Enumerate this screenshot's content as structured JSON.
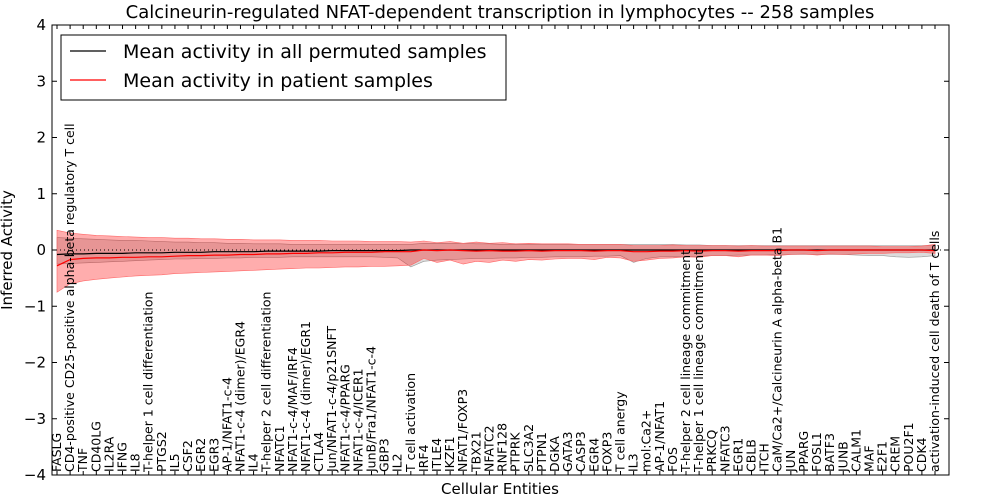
{
  "chart_data": {
    "type": "line",
    "title": "Calcineurin-regulated NFAT-dependent transcription in lymphocytes -- 258 samples",
    "xlabel": "Cellular Entities",
    "ylabel": "Inferred Activity",
    "ylim": [
      -4,
      4
    ],
    "yticks": [
      -4,
      -3,
      -2,
      -1,
      0,
      1,
      2,
      3,
      4
    ],
    "ytick_labels": [
      "−4",
      "−3",
      "−2",
      "−1",
      "0",
      "1",
      "2",
      "3",
      "4"
    ],
    "legend": {
      "position": "top-left",
      "entries": [
        {
          "label": "Mean activity in all permuted samples",
          "color": "#000000"
        },
        {
          "label": "Mean activity in patient samples",
          "color": "#ff0000"
        }
      ]
    },
    "categories": [
      "FASLG",
      "CD4-positive CD25-positive alpha-beta regulatory T cell",
      "TNF",
      "CD40LG",
      "IL2RA",
      "IFNG",
      "IL8",
      "T-helper 1 cell differentiation",
      "PTGS2",
      "IL5",
      "CSF2",
      "EGR2",
      "EGR3",
      "AP-1/NFAT1-c-4",
      "NFAT1-c-4 (dimer)/EGR4",
      "IL4",
      "T-helper 2 cell differentiation",
      "NFATC1",
      "NFAT1-c-4/MAF/IRF4",
      "NFAT1-c-4 (dimer)/EGR1",
      "CTLA4",
      "Jun/NFAT1-c-4/p21SNFT",
      "NFAT1-c-4/PPARG",
      "NFAT1-c-4/ICER1",
      "JunB/Fra1/NFAT1-c-4",
      "GBP3",
      "IL2",
      "T cell activation",
      "IRF4",
      "ITLE4",
      "IKZF1",
      "NFAT1/FOXP3",
      "TBX21",
      "NFATC2",
      "RNF128",
      "PTPRK",
      "SLC3A2",
      "PTPN1",
      "DGKA",
      "GATA3",
      "CASP3",
      "EGR4",
      "FOXP3",
      "T cell anergy",
      "IL3",
      "mol:Ca2+",
      "AP-1/NFAT1",
      "FOS",
      "T-helper 2 cell lineage commitment",
      "T-helper 1 cell lineage commitment",
      "PRKCQ",
      "NFATC3",
      "EGR1",
      "CBLB",
      "ITCH",
      "CaM/Ca2+/Calcineurin A alpha-beta B1",
      "JUN",
      "PPARG",
      "FOSL1",
      "BATF3",
      "JUNB",
      "CALM1",
      "MAF",
      "E2F1",
      "CREM",
      "POU2F1",
      "CDK4",
      "activation-induced cell death of T cells"
    ],
    "series": [
      {
        "name": "Mean activity in all permuted samples",
        "color": "#000000",
        "values": [
          -0.08,
          -0.07,
          -0.07,
          -0.06,
          -0.06,
          -0.06,
          -0.05,
          -0.05,
          -0.05,
          -0.04,
          -0.04,
          -0.04,
          -0.03,
          -0.03,
          -0.03,
          -0.03,
          -0.02,
          -0.02,
          -0.02,
          -0.02,
          -0.02,
          -0.01,
          -0.01,
          -0.01,
          -0.01,
          -0.01,
          -0.01,
          0.0,
          0.0,
          0.0,
          0.0,
          0.0,
          0.0,
          0.0,
          0.0,
          0.0,
          0.0,
          0.0,
          0.0,
          0.0,
          0.0,
          0.0,
          0.0,
          0.0,
          0.0,
          0.0,
          0.0,
          0.0,
          0.0,
          0.0,
          0.0,
          0.0,
          0.0,
          0.0,
          0.0,
          0.0,
          0.0,
          0.0,
          0.0,
          0.0,
          0.0,
          0.0,
          0.0,
          0.0,
          0.0,
          0.0,
          0.0,
          0.0
        ],
        "band_low": [
          -0.25,
          -0.24,
          -0.23,
          -0.22,
          -0.21,
          -0.2,
          -0.19,
          -0.18,
          -0.17,
          -0.16,
          -0.16,
          -0.15,
          -0.15,
          -0.14,
          -0.14,
          -0.13,
          -0.13,
          -0.13,
          -0.12,
          -0.12,
          -0.12,
          -0.12,
          -0.12,
          -0.12,
          -0.12,
          -0.13,
          -0.14,
          -0.3,
          -0.2,
          -0.18,
          -0.17,
          -0.16,
          -0.15,
          -0.15,
          -0.14,
          -0.14,
          -0.13,
          -0.13,
          -0.12,
          -0.12,
          -0.12,
          -0.11,
          -0.11,
          -0.1,
          -0.22,
          -0.15,
          -0.12,
          -0.12,
          -0.12,
          -0.11,
          -0.1,
          -0.1,
          -0.09,
          -0.09,
          -0.09,
          -0.08,
          -0.08,
          -0.08,
          -0.08,
          -0.08,
          -0.08,
          -0.09,
          -0.1,
          -0.1,
          -0.12,
          -0.13,
          -0.12,
          -0.1
        ],
        "band_high": [
          0.22,
          0.21,
          0.2,
          0.19,
          0.18,
          0.17,
          0.17,
          0.16,
          0.15,
          0.14,
          0.14,
          0.13,
          0.13,
          0.12,
          0.12,
          0.11,
          0.11,
          0.11,
          0.1,
          0.1,
          0.1,
          0.1,
          0.1,
          0.1,
          0.1,
          0.1,
          0.1,
          0.1,
          0.12,
          0.12,
          0.12,
          0.12,
          0.11,
          0.11,
          0.1,
          0.1,
          0.1,
          0.1,
          0.1,
          0.1,
          0.1,
          0.1,
          0.1,
          0.1,
          0.1,
          0.1,
          0.1,
          0.1,
          0.09,
          0.09,
          0.08,
          0.08,
          0.08,
          0.08,
          0.08,
          0.08,
          0.08,
          0.08,
          0.08,
          0.08,
          0.08,
          0.08,
          0.08,
          0.08,
          0.08,
          0.08,
          0.08,
          0.08
        ]
      },
      {
        "name": "Mean activity in patient samples",
        "color": "#ff0000",
        "values": [
          -0.28,
          -0.17,
          -0.15,
          -0.14,
          -0.14,
          -0.13,
          -0.13,
          -0.12,
          -0.12,
          -0.11,
          -0.1,
          -0.1,
          -0.09,
          -0.09,
          -0.08,
          -0.08,
          -0.07,
          -0.07,
          -0.06,
          -0.06,
          -0.05,
          -0.05,
          -0.04,
          -0.04,
          -0.04,
          -0.03,
          -0.03,
          -0.03,
          0.0,
          -0.01,
          0.0,
          -0.01,
          -0.02,
          -0.01,
          -0.02,
          -0.02,
          -0.01,
          -0.02,
          -0.01,
          -0.01,
          -0.01,
          -0.02,
          -0.01,
          -0.01,
          -0.03,
          -0.03,
          -0.02,
          -0.02,
          -0.01,
          -0.02,
          -0.01,
          -0.01,
          -0.02,
          -0.01,
          -0.01,
          -0.01,
          0.0,
          0.0,
          -0.01,
          0.0,
          0.0,
          0.0,
          0.0,
          0.0,
          0.0,
          0.0,
          0.0,
          -0.01
        ],
        "band_low": [
          -0.75,
          -0.6,
          -0.55,
          -0.52,
          -0.5,
          -0.48,
          -0.46,
          -0.45,
          -0.44,
          -0.42,
          -0.41,
          -0.4,
          -0.39,
          -0.38,
          -0.37,
          -0.36,
          -0.35,
          -0.34,
          -0.33,
          -0.32,
          -0.32,
          -0.31,
          -0.3,
          -0.3,
          -0.29,
          -0.29,
          -0.28,
          -0.27,
          -0.15,
          -0.22,
          -0.18,
          -0.25,
          -0.2,
          -0.22,
          -0.18,
          -0.2,
          -0.17,
          -0.18,
          -0.16,
          -0.15,
          -0.15,
          -0.17,
          -0.13,
          -0.14,
          -0.2,
          -0.18,
          -0.15,
          -0.14,
          -0.12,
          -0.13,
          -0.1,
          -0.1,
          -0.12,
          -0.09,
          -0.09,
          -0.1,
          -0.08,
          -0.07,
          -0.09,
          -0.07,
          -0.08,
          -0.07,
          -0.06,
          -0.06,
          -0.05,
          -0.05,
          -0.04,
          -0.06
        ],
        "band_high": [
          0.35,
          0.3,
          0.28,
          0.26,
          0.25,
          0.24,
          0.23,
          0.22,
          0.22,
          0.21,
          0.21,
          0.2,
          0.2,
          0.19,
          0.19,
          0.18,
          0.18,
          0.18,
          0.17,
          0.17,
          0.17,
          0.16,
          0.16,
          0.16,
          0.15,
          0.15,
          0.15,
          0.14,
          0.16,
          0.13,
          0.15,
          0.12,
          0.14,
          0.12,
          0.13,
          0.11,
          0.12,
          0.11,
          0.11,
          0.11,
          0.1,
          0.1,
          0.1,
          0.1,
          0.08,
          0.08,
          0.08,
          0.09,
          0.08,
          0.08,
          0.08,
          0.08,
          0.07,
          0.08,
          0.07,
          0.07,
          0.07,
          0.07,
          0.07,
          0.07,
          0.07,
          0.07,
          0.07,
          0.06,
          0.06,
          0.06,
          0.07,
          0.1
        ]
      }
    ]
  }
}
